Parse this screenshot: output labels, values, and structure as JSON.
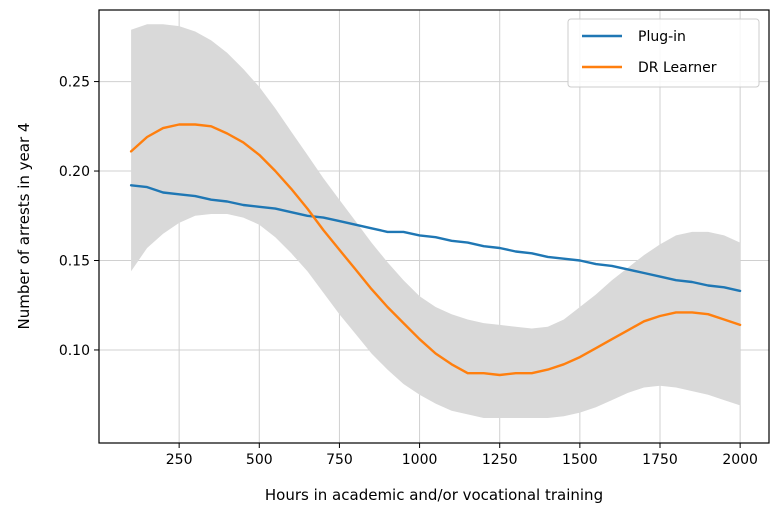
{
  "chart_data": {
    "type": "line",
    "xlabel": "Hours in academic and/or vocational training",
    "ylabel": "Number of arrests in year 4",
    "xlim": [
      0,
      2090
    ],
    "ylim": [
      0.048,
      0.29
    ],
    "xticks": [
      250,
      500,
      750,
      1000,
      1250,
      1500,
      1750,
      2000
    ],
    "yticks": [
      0.1,
      0.15,
      0.2,
      0.25
    ],
    "xtick_labels": [
      "250",
      "500",
      "750",
      "1000",
      "1250",
      "1500",
      "1750",
      "2000"
    ],
    "ytick_labels": [
      "0.10",
      "0.15",
      "0.20",
      "0.25"
    ],
    "grid": true,
    "legend_position": "top-right",
    "band": {
      "x": [
        100,
        150,
        200,
        250,
        300,
        350,
        400,
        450,
        500,
        550,
        600,
        650,
        700,
        750,
        800,
        850,
        900,
        950,
        1000,
        1050,
        1100,
        1150,
        1200,
        1250,
        1300,
        1350,
        1400,
        1450,
        1500,
        1550,
        1600,
        1650,
        1700,
        1750,
        1800,
        1850,
        1900,
        1950,
        2000
      ],
      "upper": [
        0.279,
        0.282,
        0.282,
        0.281,
        0.278,
        0.273,
        0.266,
        0.257,
        0.247,
        0.235,
        0.222,
        0.209,
        0.196,
        0.184,
        0.172,
        0.16,
        0.149,
        0.139,
        0.13,
        0.124,
        0.12,
        0.117,
        0.115,
        0.114,
        0.113,
        0.112,
        0.113,
        0.117,
        0.124,
        0.131,
        0.139,
        0.146,
        0.153,
        0.159,
        0.164,
        0.166,
        0.166,
        0.164,
        0.16
      ],
      "lower": [
        0.144,
        0.157,
        0.165,
        0.171,
        0.175,
        0.176,
        0.176,
        0.174,
        0.17,
        0.163,
        0.154,
        0.144,
        0.132,
        0.12,
        0.109,
        0.098,
        0.089,
        0.081,
        0.075,
        0.07,
        0.066,
        0.064,
        0.062,
        0.062,
        0.062,
        0.062,
        0.062,
        0.063,
        0.065,
        0.068,
        0.072,
        0.076,
        0.079,
        0.08,
        0.079,
        0.077,
        0.075,
        0.072,
        0.069
      ]
    },
    "series": [
      {
        "name": "Plug-in",
        "color": "#1f77b4",
        "x": [
          100,
          150,
          200,
          250,
          300,
          350,
          400,
          450,
          500,
          550,
          600,
          650,
          700,
          750,
          800,
          850,
          900,
          950,
          1000,
          1050,
          1100,
          1150,
          1200,
          1250,
          1300,
          1350,
          1400,
          1450,
          1500,
          1550,
          1600,
          1650,
          1700,
          1750,
          1800,
          1850,
          1900,
          1950,
          2000
        ],
        "y": [
          0.192,
          0.191,
          0.188,
          0.187,
          0.186,
          0.184,
          0.183,
          0.181,
          0.18,
          0.179,
          0.177,
          0.175,
          0.174,
          0.172,
          0.17,
          0.168,
          0.166,
          0.166,
          0.164,
          0.163,
          0.161,
          0.16,
          0.158,
          0.157,
          0.155,
          0.154,
          0.152,
          0.151,
          0.15,
          0.148,
          0.147,
          0.145,
          0.143,
          0.141,
          0.139,
          0.138,
          0.136,
          0.135,
          0.133
        ]
      },
      {
        "name": "DR Learner",
        "color": "#ff7f0e",
        "x": [
          100,
          150,
          200,
          250,
          300,
          350,
          400,
          450,
          500,
          550,
          600,
          650,
          700,
          750,
          800,
          850,
          900,
          950,
          1000,
          1050,
          1100,
          1150,
          1200,
          1250,
          1300,
          1350,
          1400,
          1450,
          1500,
          1550,
          1600,
          1650,
          1700,
          1750,
          1800,
          1850,
          1900,
          1950,
          2000
        ],
        "y": [
          0.211,
          0.219,
          0.224,
          0.226,
          0.226,
          0.225,
          0.221,
          0.216,
          0.209,
          0.2,
          0.19,
          0.179,
          0.167,
          0.156,
          0.145,
          0.134,
          0.124,
          0.115,
          0.106,
          0.098,
          0.092,
          0.087,
          0.087,
          0.086,
          0.087,
          0.087,
          0.089,
          0.092,
          0.096,
          0.101,
          0.106,
          0.111,
          0.116,
          0.119,
          0.121,
          0.121,
          0.12,
          0.117,
          0.114
        ]
      }
    ],
    "band_color": "#d9d9d9",
    "grid_color": "#d0d0d0"
  }
}
